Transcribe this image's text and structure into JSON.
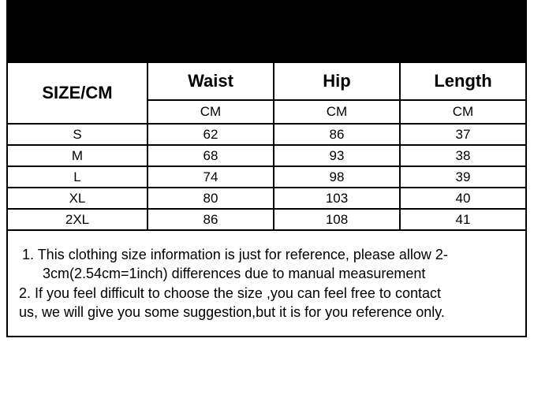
{
  "table": {
    "type": "table",
    "background_color": "#ffffff",
    "border_color": "#000000",
    "text_color": "#000000",
    "header_bar_color": "#000000",
    "header_fontsize": 22,
    "cell_fontsize": 17,
    "notes_fontsize": 18,
    "columns": {
      "size_label": "SIZE/CM",
      "waist": "Waist",
      "hip": "Hip",
      "length": "Length"
    },
    "units": {
      "waist": "CM",
      "hip": "CM",
      "length": "CM"
    },
    "rows": [
      {
        "size": "S",
        "waist": "62",
        "hip": "86",
        "length": "37"
      },
      {
        "size": "M",
        "waist": "68",
        "hip": "93",
        "length": "38"
      },
      {
        "size": "L",
        "waist": "74",
        "hip": "98",
        "length": "39"
      },
      {
        "size": "XL",
        "waist": "80",
        "hip": "103",
        "length": "40"
      },
      {
        "size": "2XL",
        "waist": "86",
        "hip": "108",
        "length": "41"
      }
    ],
    "notes": {
      "line1a": "1. This clothing size information is just for reference, please allow 2-",
      "line1b": "3cm(2.54cm=1inch) differences due to manual measurement",
      "line2a": "2. If you feel difficult to choose the size ,you can feel free to contact",
      "line2b": "us, we will give you some suggestion,but it is for you reference only."
    }
  }
}
